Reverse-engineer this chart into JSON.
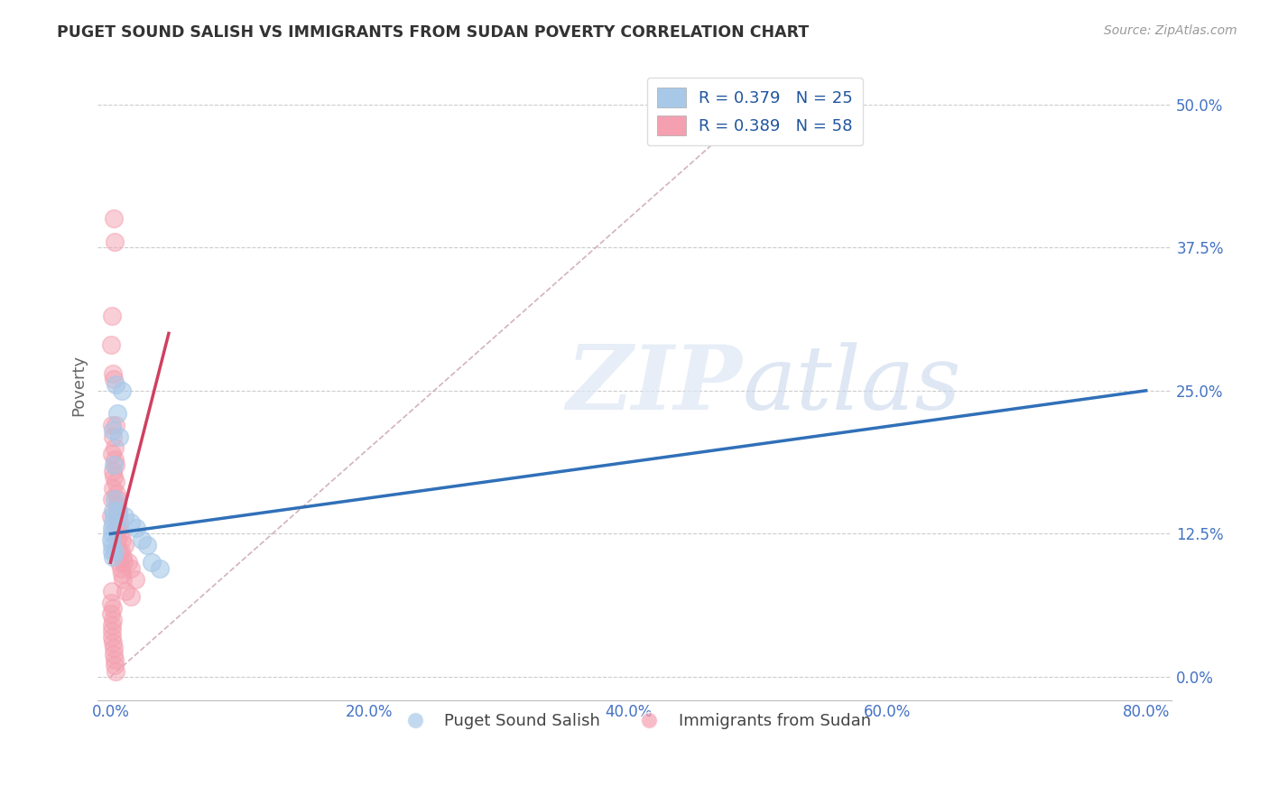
{
  "title": "PUGET SOUND SALISH VS IMMIGRANTS FROM SUDAN POVERTY CORRELATION CHART",
  "source": "Source: ZipAtlas.com",
  "xlabel_vals": [
    0.0,
    20.0,
    40.0,
    60.0,
    80.0
  ],
  "ylabel_vals": [
    0.0,
    12.5,
    25.0,
    37.5,
    50.0
  ],
  "xlim": [
    -1.0,
    82
  ],
  "ylim": [
    -2.0,
    53
  ],
  "legend_label1": "Puget Sound Salish",
  "legend_label2": "Immigrants from Sudan",
  "blue_color": "#a8c8e8",
  "pink_color": "#f4a0b0",
  "blue_line_color": "#3070b8",
  "pink_line_color": "#d04060",
  "blue_scatter": [
    [
      0.15,
      13.5
    ],
    [
      0.3,
      15.5
    ],
    [
      0.25,
      18.5
    ],
    [
      0.15,
      21.5
    ],
    [
      0.4,
      25.5
    ],
    [
      0.5,
      23.0
    ],
    [
      0.9,
      25.0
    ],
    [
      0.7,
      21.0
    ],
    [
      0.08,
      11.5
    ],
    [
      0.12,
      12.5
    ],
    [
      0.2,
      14.5
    ],
    [
      0.28,
      14.0
    ],
    [
      0.18,
      10.5
    ],
    [
      0.35,
      11.0
    ],
    [
      0.6,
      14.5
    ],
    [
      1.1,
      14.0
    ],
    [
      1.6,
      13.5
    ],
    [
      2.0,
      13.0
    ],
    [
      2.4,
      12.0
    ],
    [
      2.8,
      11.5
    ],
    [
      3.2,
      10.0
    ],
    [
      3.8,
      9.5
    ],
    [
      0.05,
      12.0
    ],
    [
      0.1,
      11.0
    ],
    [
      0.08,
      13.0
    ]
  ],
  "pink_scatter": [
    [
      0.04,
      14.0
    ],
    [
      0.08,
      15.5
    ],
    [
      0.06,
      29.0
    ],
    [
      0.12,
      31.5
    ],
    [
      0.15,
      26.5
    ],
    [
      0.22,
      26.0
    ],
    [
      0.09,
      22.0
    ],
    [
      0.18,
      21.0
    ],
    [
      0.13,
      19.5
    ],
    [
      0.17,
      18.0
    ],
    [
      0.26,
      17.5
    ],
    [
      0.21,
      16.5
    ],
    [
      0.3,
      20.0
    ],
    [
      0.33,
      19.0
    ],
    [
      0.38,
      18.5
    ],
    [
      0.42,
      17.0
    ],
    [
      0.46,
      16.0
    ],
    [
      0.5,
      15.5
    ],
    [
      0.54,
      15.0
    ],
    [
      0.58,
      14.5
    ],
    [
      0.62,
      14.0
    ],
    [
      0.66,
      13.5
    ],
    [
      0.7,
      13.0
    ],
    [
      0.74,
      12.5
    ],
    [
      0.78,
      11.0
    ],
    [
      0.85,
      12.0
    ],
    [
      0.92,
      10.5
    ],
    [
      1.0,
      10.0
    ],
    [
      1.1,
      11.5
    ],
    [
      1.35,
      10.0
    ],
    [
      1.55,
      9.5
    ],
    [
      1.9,
      8.5
    ],
    [
      0.22,
      40.0
    ],
    [
      0.3,
      38.0
    ],
    [
      0.38,
      22.0
    ],
    [
      0.46,
      13.0
    ],
    [
      0.54,
      12.0
    ],
    [
      0.62,
      11.0
    ],
    [
      0.7,
      10.0
    ],
    [
      0.78,
      9.5
    ],
    [
      0.86,
      9.0
    ],
    [
      0.94,
      8.5
    ],
    [
      1.15,
      7.5
    ],
    [
      1.6,
      7.0
    ],
    [
      0.11,
      7.5
    ],
    [
      0.15,
      6.0
    ],
    [
      0.19,
      5.0
    ],
    [
      0.08,
      4.0
    ],
    [
      0.04,
      5.5
    ],
    [
      0.06,
      6.5
    ],
    [
      0.09,
      4.5
    ],
    [
      0.14,
      3.5
    ],
    [
      0.17,
      3.0
    ],
    [
      0.22,
      2.5
    ],
    [
      0.27,
      2.0
    ],
    [
      0.31,
      1.5
    ],
    [
      0.35,
      1.0
    ],
    [
      0.4,
      0.5
    ]
  ],
  "blue_trend_x": [
    0.0,
    80.0
  ],
  "blue_trend_y": [
    12.5,
    25.0
  ],
  "pink_trend_x": [
    0.0,
    4.5
  ],
  "pink_trend_y": [
    10.0,
    30.0
  ],
  "diag_line_x": [
    0.0,
    50.0
  ],
  "diag_line_y": [
    0.0,
    50.0
  ],
  "tick_color": "#4472C4",
  "label_color": "#2055a0",
  "grid_color": "#cccccc",
  "spine_color": "#bbbbbb"
}
